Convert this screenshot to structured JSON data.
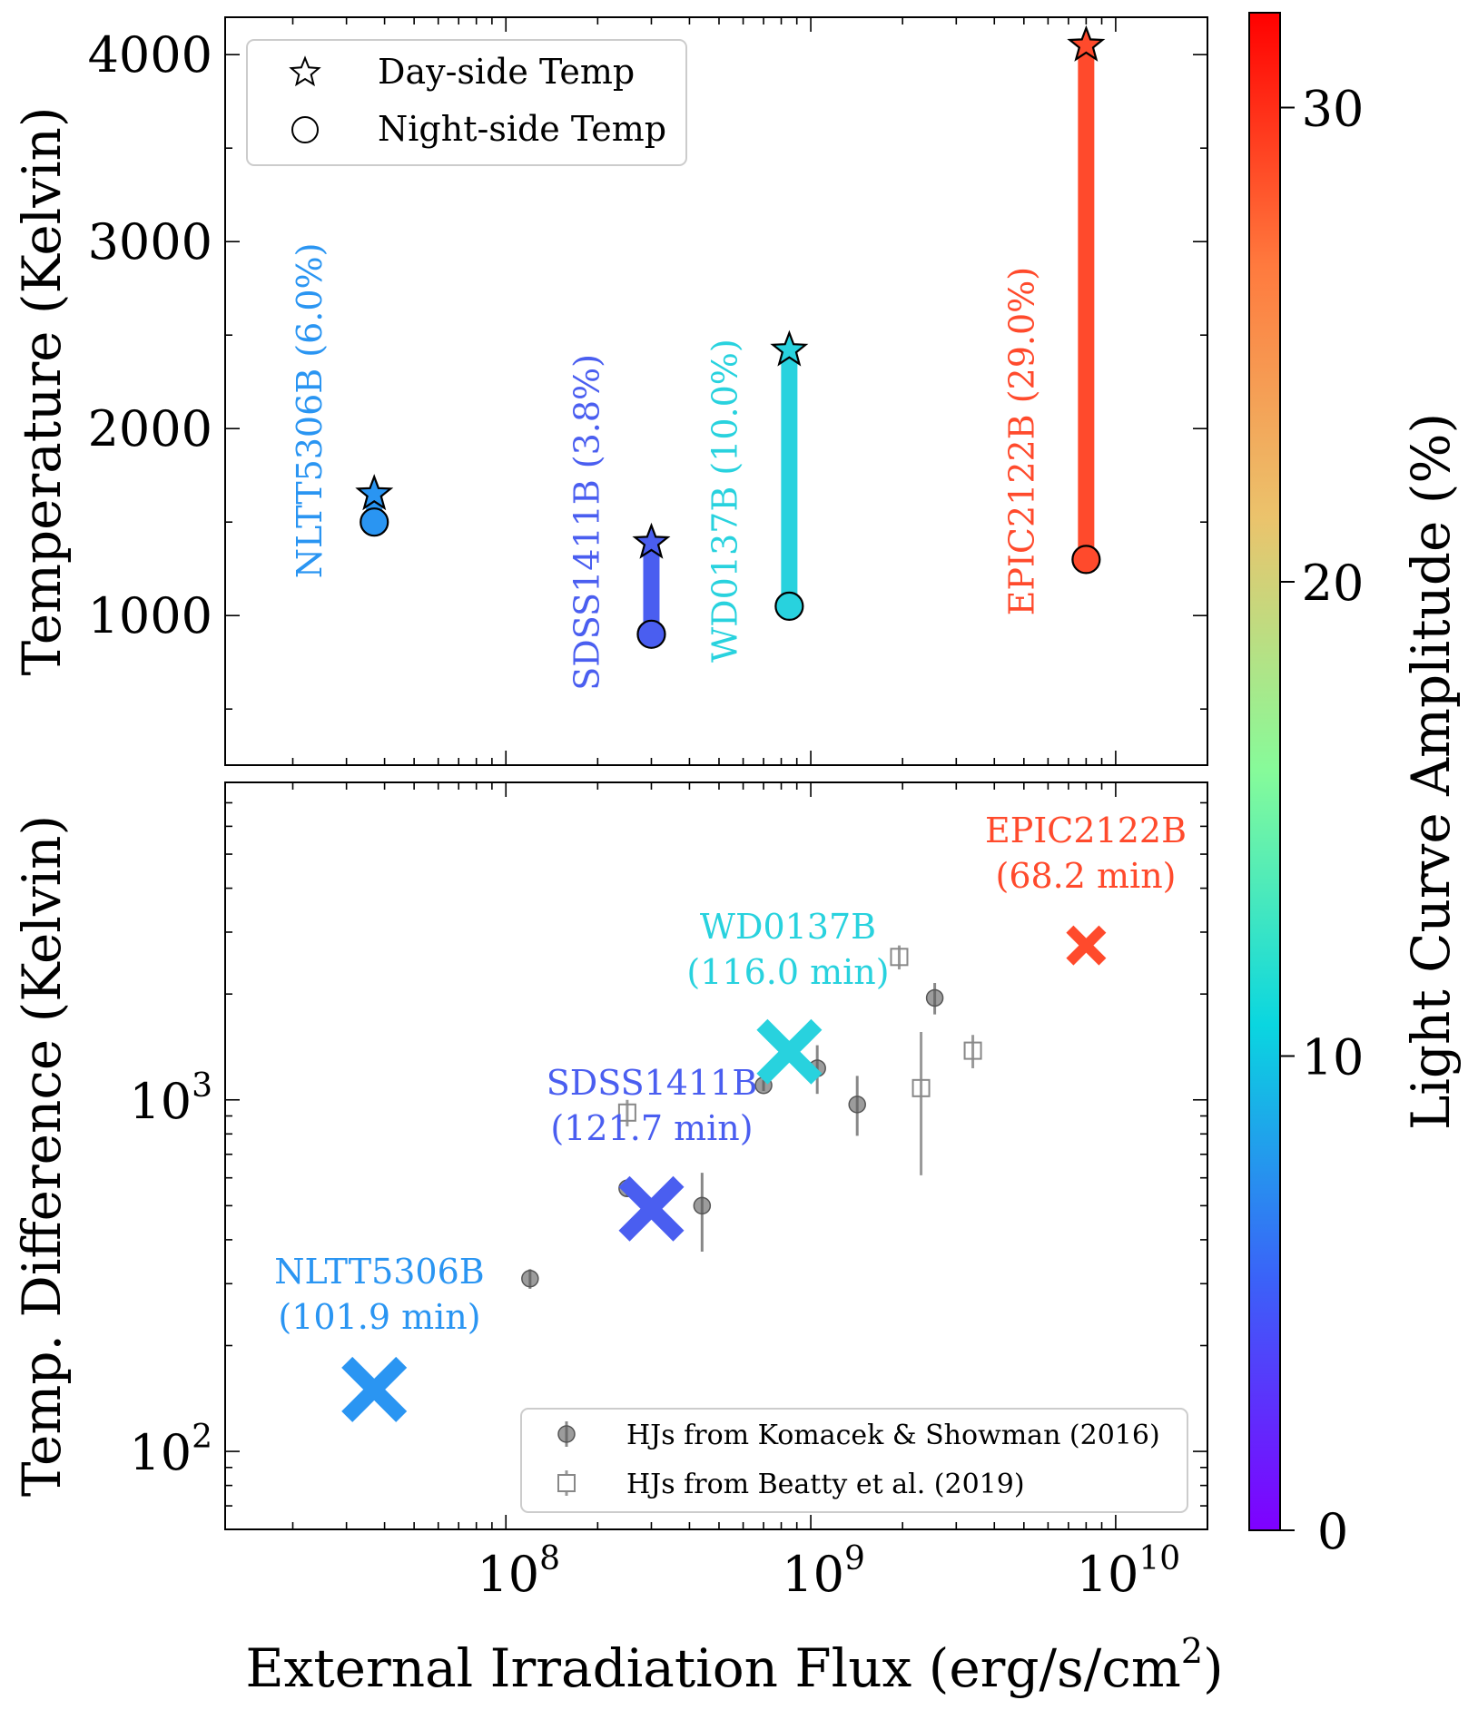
{
  "chart_data": [
    {
      "type": "scatter",
      "panel": "top",
      "ylabel": "Temperature (Kelvin)",
      "x_scale": "log",
      "xlim": [
        12000000,
        20000000000
      ],
      "ylim": [
        200,
        4200
      ],
      "y_ticks": [
        1000,
        2000,
        3000,
        4000
      ],
      "legend": {
        "placement": "top-left",
        "entries": [
          {
            "marker": "star",
            "label": "Day-side Temp"
          },
          {
            "marker": "circle",
            "label": "Night-side Temp"
          }
        ]
      },
      "objects": [
        {
          "name": "NLTT5306B",
          "label": "NLTT5306B (6.0%)",
          "flux": 37000000,
          "day_temp": 1650,
          "night_temp": 1500,
          "amplitude": 6.0,
          "color": "#2a95f2"
        },
        {
          "name": "SDSS1411B",
          "label": "SDSS1411B (3.8%)",
          "flux": 300000000,
          "day_temp": 1390,
          "night_temp": 900,
          "amplitude": 3.8,
          "color": "#4a5ef0"
        },
        {
          "name": "WD0137B",
          "label": "WD0137B (10.0%)",
          "flux": 850000000,
          "day_temp": 2420,
          "night_temp": 1050,
          "amplitude": 10.0,
          "color": "#28d2de"
        },
        {
          "name": "EPIC2122B",
          "label": "EPIC2122B (29.0%)",
          "flux": 8000000000,
          "day_temp": 4050,
          "night_temp": 1300,
          "amplitude": 29.0,
          "color": "#ff4a2c"
        }
      ]
    },
    {
      "type": "scatter",
      "panel": "bottom",
      "xlabel": "External Irradiation Flux (erg/s/cm",
      "xlabel_sup": "2",
      "xlabel_end": ")",
      "ylabel": "Temp. Difference (Kelvin)",
      "x_scale": "log",
      "y_scale": "log",
      "xlim": [
        12000000,
        20000000000
      ],
      "ylim": [
        60,
        8000
      ],
      "x_ticks": [
        {
          "value": 100000000,
          "base": "10",
          "exp": "8"
        },
        {
          "value": 1000000000,
          "base": "10",
          "exp": "9"
        },
        {
          "value": 10000000000,
          "base": "10",
          "exp": "10"
        }
      ],
      "y_ticks": [
        {
          "value": 100,
          "base": "10",
          "exp": "2"
        },
        {
          "value": 1000,
          "base": "10",
          "exp": "3"
        }
      ],
      "legend": {
        "placement": "bottom-right",
        "entries": [
          {
            "marker": "circle",
            "label": "HJs from Komacek & Showman (2016)"
          },
          {
            "marker": "square",
            "label": "HJs from Beatty et al. (2019)"
          }
        ]
      },
      "objects": [
        {
          "name": "NLTT5306B",
          "period": "(101.9 min)",
          "flux": 37000000,
          "temp_diff": 150,
          "color": "#2a95f2"
        },
        {
          "name": "SDSS1411B",
          "period": "(121.7 min)",
          "flux": 300000000,
          "temp_diff": 490,
          "color": "#4a5ef0"
        },
        {
          "name": "WD0137B",
          "period": "(116.0 min)",
          "flux": 850000000,
          "temp_diff": 1370,
          "color": "#28d2de"
        },
        {
          "name": "EPIC2122B",
          "period": "(68.2 min)",
          "flux": 8000000000,
          "temp_diff": 2750,
          "color": "#ff4a2c"
        }
      ],
      "komacek_showman_2016": [
        {
          "flux": 120000000,
          "temp_diff": 310,
          "err_lo": 20,
          "err_hi": 20
        },
        {
          "flux": 250000000,
          "temp_diff": 560,
          "err_lo": 30,
          "err_hi": 30
        },
        {
          "flux": 440000000,
          "temp_diff": 500,
          "err_lo": 130,
          "err_hi": 120
        },
        {
          "flux": 700000000,
          "temp_diff": 1100,
          "err_lo": 40,
          "err_hi": 40
        },
        {
          "flux": 1050000000,
          "temp_diff": 1230,
          "err_lo": 190,
          "err_hi": 200
        },
        {
          "flux": 1420000000,
          "temp_diff": 970,
          "err_lo": 180,
          "err_hi": 200
        },
        {
          "flux": 2550000000,
          "temp_diff": 1950,
          "err_lo": 200,
          "err_hi": 200
        }
      ],
      "beatty_2019": [
        {
          "flux": 250000000,
          "temp_diff": 920,
          "err_lo": 80,
          "err_hi": 80
        },
        {
          "flux": 1950000000,
          "temp_diff": 2550,
          "err_lo": 200,
          "err_hi": 200
        },
        {
          "flux": 2300000000,
          "temp_diff": 1080,
          "err_lo": 470,
          "err_hi": 480
        },
        {
          "flux": 3400000000,
          "temp_diff": 1380,
          "err_lo": 150,
          "err_hi": 150
        }
      ]
    },
    {
      "type": "colorbar",
      "label": "Light Curve Amplitude (%)",
      "range": [
        0,
        32
      ],
      "ticks": [
        0,
        10,
        20,
        30
      ],
      "colors": [
        "#7f00ff",
        "#3a63f8",
        "#0ad6e0",
        "#86fb9a",
        "#ebc36c",
        "#ff7a3e",
        "#ff0000"
      ]
    }
  ]
}
